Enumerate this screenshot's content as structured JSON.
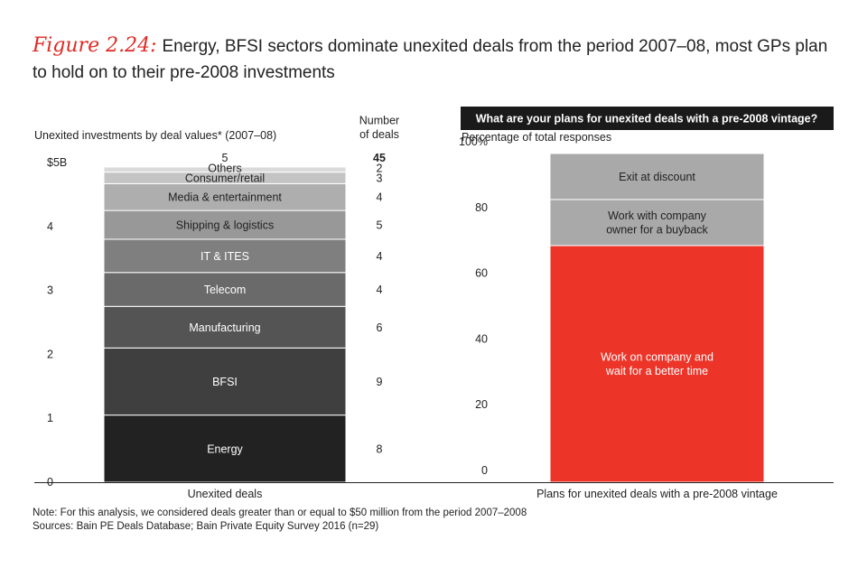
{
  "figure": {
    "label": "Figure 2.24:",
    "title": "Energy, BFSI sectors dominate unexited deals from the period 2007–08, most GPs plan to hold on to their pre-2008 investments"
  },
  "notes": {
    "note": "Note: For this analysis, we considered deals greater than or equal to $50 million from the period 2007–2008",
    "sources": "Sources: Bain PE Deals Database; Bain Private Equity Survey 2016 (n=29)"
  },
  "colors": {
    "accent_red": "#e8342a",
    "header_black": "#1a1a1a"
  },
  "chart_data": [
    {
      "type": "bar",
      "stacked": true,
      "subtitle": "Unexited investments by deal values* (2007–08)",
      "xlabel": "Unexited deals",
      "ylim": [
        0,
        5
      ],
      "yticks": [
        "0",
        "1",
        "2",
        "3",
        "4",
        "$5B"
      ],
      "total_label": "5",
      "count_header": "Number\nof deals",
      "count_total": "45",
      "series": [
        {
          "name": "Energy",
          "value": 1.05,
          "deals": "8",
          "color": "#222222"
        },
        {
          "name": "BFSI",
          "value": 1.05,
          "deals": "9",
          "color": "#3f3f3f"
        },
        {
          "name": "Manufacturing",
          "value": 0.65,
          "deals": "6",
          "color": "#545454"
        },
        {
          "name": "Telecom",
          "value": 0.53,
          "deals": "4",
          "color": "#6a6a6a"
        },
        {
          "name": "IT & ITES",
          "value": 0.52,
          "deals": "4",
          "color": "#7f7f7f"
        },
        {
          "name": "Shipping & logistics",
          "value": 0.45,
          "deals": "5",
          "color": "#989898"
        },
        {
          "name": "Media & entertainment",
          "value": 0.42,
          "deals": "4",
          "color": "#aeaeae"
        },
        {
          "name": "Consumer/retail",
          "value": 0.18,
          "deals": "3",
          "color": "#c4c4c4"
        },
        {
          "name": "Others",
          "value": 0.08,
          "deals": "2",
          "color": "#dadada"
        }
      ]
    },
    {
      "type": "bar",
      "stacked": true,
      "header": "What are your plans for unexited deals with a pre-2008 vintage?",
      "subtitle": "Percentage of total responses",
      "xlabel": "Plans for unexited deals with a pre-2008 vintage",
      "ylim": [
        0,
        100
      ],
      "yticks": [
        "0",
        "20",
        "40",
        "60",
        "80",
        "100%"
      ],
      "series": [
        {
          "name": "Work on company and\nwait for a better time",
          "value": 72,
          "color": "#ec3428",
          "text_color": "#ffffff"
        },
        {
          "name": "Work with company\nowner for a buyback",
          "value": 14,
          "color": "#a9a9a9",
          "text_color": "#222222"
        },
        {
          "name": "Exit at discount",
          "value": 14,
          "color": "#a9a9a9",
          "text_color": "#222222"
        }
      ]
    }
  ]
}
